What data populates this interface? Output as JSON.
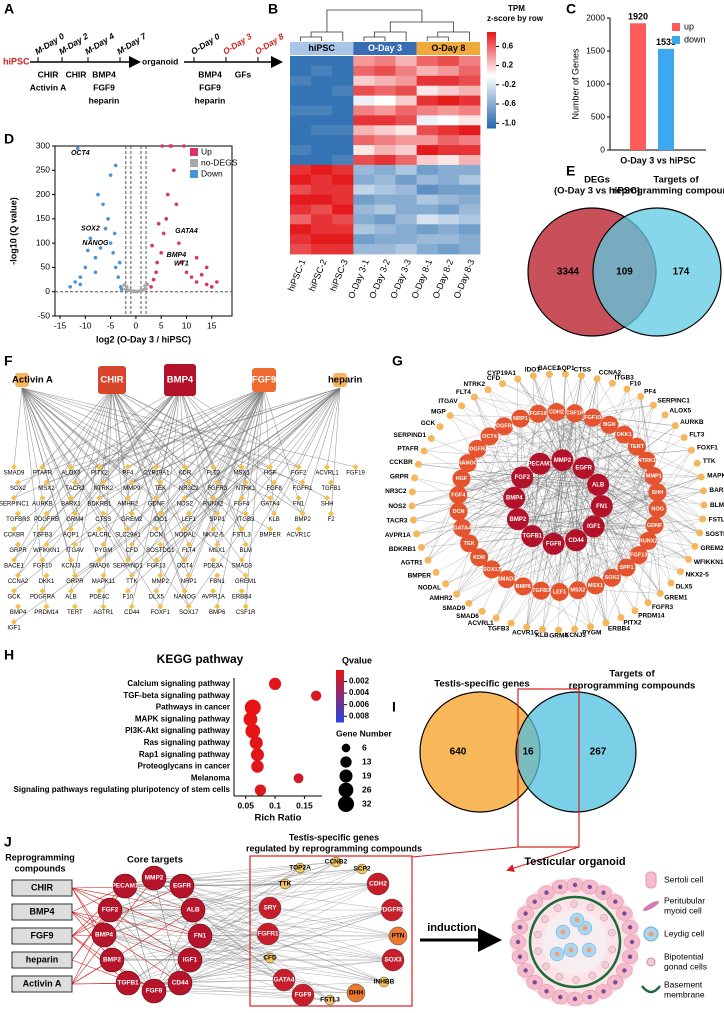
{
  "panel_labels": [
    "A",
    "B",
    "C",
    "D",
    "E",
    "F",
    "G",
    "H",
    "I",
    "J"
  ],
  "panel_a": {
    "start": "hiPSC",
    "m_days": [
      "M-Day 0",
      "M-Day 2",
      "M-Day 4",
      "M-Day 7"
    ],
    "m_factors": [
      [
        "CHIR",
        "Activin A"
      ],
      [
        "CHIR"
      ],
      [
        "BMP4",
        "FGF9",
        "heparin"
      ]
    ],
    "organoid": "organoid",
    "o_days": [
      "O-Day 0",
      "O-Day 3",
      "O-Day 8"
    ],
    "o_day_colors": [
      "#000000",
      "#d42020",
      "#d42020"
    ],
    "o_factors": [
      [
        "BMP4",
        "FGF9",
        "heparin"
      ],
      [
        "GFs"
      ]
    ]
  },
  "chart_data": [
    {
      "type": "heatmap",
      "groups": [
        {
          "name": "hiPSC",
          "color": "#a9c5e8"
        },
        {
          "name": "O-Day 3",
          "color": "#3a6cb4"
        },
        {
          "name": "O-Day 8",
          "color": "#f2a93b"
        }
      ],
      "columns": [
        "hiPSC-1",
        "hiPSC-2",
        "hiPSC-3",
        "O-Day 3-1",
        "O-Day 3-2",
        "O-Day 3-3",
        "O-Day 8-1",
        "O-Day 8-2",
        "O-Day 8-3"
      ],
      "legend_title": [
        "TPM",
        "z-score by row"
      ],
      "zlim": [
        -1.1,
        0.9
      ],
      "zticks": [
        0.6,
        0.2,
        -0.2,
        -0.6,
        {
          "value": -1,
          "label": "-1.0"
        }
      ],
      "values": [
        [
          -1.0,
          -1.0,
          -1.0,
          0.4,
          0.5,
          0.3,
          0.6,
          0.7,
          0.5
        ],
        [
          -1.0,
          -0.9,
          -1.0,
          0.6,
          0.7,
          0.5,
          0.3,
          0.4,
          0.6
        ],
        [
          -0.9,
          -1.0,
          -1.0,
          0.2,
          0.3,
          0.4,
          0.8,
          0.8,
          0.7
        ],
        [
          -1.0,
          -1.0,
          -0.9,
          0.7,
          0.6,
          0.7,
          0.1,
          0.2,
          0.3
        ],
        [
          -1.0,
          -1.0,
          -1.0,
          -0.1,
          0.0,
          0.2,
          0.8,
          0.9,
          0.8
        ],
        [
          -0.9,
          -0.9,
          -1.0,
          0.5,
          0.4,
          0.6,
          0.5,
          0.4,
          0.5
        ],
        [
          -1.0,
          -1.0,
          -1.0,
          0.8,
          0.8,
          0.7,
          -0.1,
          0.0,
          0.1
        ],
        [
          -1.0,
          -0.9,
          -0.9,
          0.3,
          0.2,
          0.1,
          0.7,
          0.8,
          0.9
        ],
        [
          -1.0,
          -1.0,
          -1.0,
          0.6,
          0.5,
          0.4,
          0.4,
          0.6,
          0.5
        ],
        [
          -0.9,
          -1.0,
          -1.0,
          0.1,
          0.3,
          0.2,
          0.9,
          0.8,
          0.8
        ],
        [
          -1.0,
          -1.0,
          -0.9,
          0.7,
          0.8,
          0.6,
          0.2,
          0.1,
          0.3
        ],
        [
          0.8,
          0.9,
          0.8,
          -0.5,
          -0.6,
          -0.4,
          -0.7,
          -0.6,
          -0.6
        ],
        [
          0.9,
          0.8,
          0.9,
          -0.6,
          -0.5,
          -0.7,
          -0.5,
          -0.6,
          -0.4
        ],
        [
          0.7,
          0.8,
          0.8,
          -0.3,
          -0.4,
          -0.5,
          -0.8,
          -0.7,
          -0.7
        ],
        [
          0.9,
          0.9,
          0.8,
          -0.7,
          -0.6,
          -0.6,
          -0.4,
          -0.5,
          -0.6
        ],
        [
          0.8,
          0.7,
          0.9,
          -0.5,
          -0.4,
          -0.6,
          -0.6,
          -0.7,
          -0.5
        ],
        [
          0.6,
          0.8,
          0.7,
          -0.6,
          -0.7,
          -0.5,
          -0.2,
          -0.3,
          -0.4
        ],
        [
          0.9,
          0.8,
          0.8,
          -0.4,
          -0.5,
          -0.6,
          -0.7,
          -0.6,
          -0.7
        ],
        [
          0.8,
          0.9,
          0.9,
          -0.7,
          -0.6,
          -0.6,
          -0.5,
          -0.5,
          -0.6
        ],
        [
          0.7,
          0.8,
          0.8,
          -0.5,
          -0.5,
          -0.4,
          -0.6,
          -0.7,
          -0.6
        ]
      ]
    },
    {
      "type": "bar",
      "categories": [
        "O-Day 3 vs hiPSC"
      ],
      "y_label": "Number of Genes",
      "series": [
        {
          "name": "up",
          "color": "#ff5b5b",
          "values": [
            1920
          ]
        },
        {
          "name": "down",
          "color": "#3da7f0",
          "values": [
            1533
          ]
        }
      ],
      "ylim": [
        0,
        2000
      ],
      "yticks": [
        0,
        500,
        1000,
        1500,
        2000
      ]
    },
    {
      "type": "scatter",
      "x_label": "log2 (O-Day 3 / hiPSC)",
      "y_label": "-log10 (Q value)",
      "xlim": [
        -16,
        19
      ],
      "ylim": [
        -50,
        300
      ],
      "xticks": [
        -15,
        -10,
        -5,
        0,
        5,
        10,
        15
      ],
      "yticks": [
        -50,
        0,
        50,
        100,
        150,
        200,
        250,
        300
      ],
      "vlines": [
        -2,
        -1,
        1,
        2
      ],
      "hline": 0,
      "series": [
        {
          "name": "Up",
          "color": "#d6336c",
          "x": [
            3,
            3.5,
            4,
            4.2,
            5,
            5.5,
            6,
            6.3,
            7,
            7.5,
            8,
            8.5,
            9,
            10,
            11,
            12,
            13,
            14,
            15,
            3.2,
            4.5,
            5.2,
            6.8,
            9.5,
            12,
            14,
            16
          ],
          "values": [
            10,
            25,
            40,
            60,
            80,
            120,
            150,
            200,
            300,
            250,
            180,
            100,
            60,
            40,
            30,
            20,
            35,
            15,
            10,
            95,
            140,
            300,
            300,
            300,
            70,
            50,
            20
          ]
        },
        {
          "name": "no-DEGS",
          "color": "#a8a8a8",
          "x": [
            -2,
            -1.5,
            -1,
            -0.5,
            0,
            0.5,
            1,
            1.5,
            2,
            -1.8,
            1.8,
            0.2,
            -0.3,
            2.3,
            -2.3
          ],
          "values": [
            5,
            3,
            2,
            1,
            0.5,
            1,
            2,
            4,
            6,
            10,
            12,
            0.3,
            0.8,
            15,
            14
          ]
        },
        {
          "name": "Down",
          "color": "#4a93d6",
          "x": [
            -3,
            -3.5,
            -4,
            -4.5,
            -5,
            -5.5,
            -6,
            -7,
            -8,
            -9,
            -10,
            -11,
            -12,
            -13,
            -3.2,
            -4.2,
            -6.5,
            -7.5,
            -9.5,
            -11,
            -5,
            -4,
            -8,
            -2.8,
            -11.5
          ],
          "values": [
            10,
            30,
            50,
            80,
            100,
            150,
            130,
            90,
            70,
            110,
            50,
            30,
            20,
            10,
            60,
            120,
            180,
            200,
            85,
            15,
            240,
            260,
            40,
            5,
            295
          ]
        }
      ],
      "annotations": [
        {
          "text": "OCT4",
          "x": -11,
          "y": 285
        },
        {
          "text": "SOX2",
          "x": -9,
          "y": 130
        },
        {
          "text": "NANOG",
          "x": -8,
          "y": 100
        },
        {
          "text": "GATA4",
          "x": 10,
          "y": 125
        },
        {
          "text": "BMP4",
          "x": 8,
          "y": 75
        },
        {
          "text": "WT1",
          "x": 9,
          "y": 58
        }
      ]
    },
    {
      "type": "dot",
      "title": "KEGG pathway",
      "x_label": "Rich Ratio",
      "categories": [
        "Calcium signaling pathway",
        "TGF-beta signaling pathway",
        "Pathways in cancer",
        "MAPK signaling pathway",
        "PI3K-Akt signaling pathway",
        "Ras signaling pathway",
        "Rap1 signaling pathway",
        "Proteoglycans in cancer",
        "Melanoma",
        "Signaling pathways regulating pluripotency of stem cells"
      ],
      "rich_ratio": [
        0.1,
        0.17,
        0.062,
        0.058,
        0.062,
        0.068,
        0.07,
        0.07,
        0.14,
        0.075
      ],
      "qvalue": [
        0.0002,
        0.0005,
        0,
        0,
        0,
        0.0001,
        0.0002,
        0.0003,
        0.001,
        0.0004
      ],
      "gene_number": [
        16,
        10,
        32,
        22,
        26,
        19,
        19,
        17,
        9,
        13
      ],
      "xlim": [
        0.03,
        0.18
      ],
      "xticks": [
        0.05,
        0.1,
        0.15
      ],
      "color_title": "Qvalue",
      "qlim": [
        0,
        0.009
      ],
      "qticks": [
        0.002,
        0.004,
        0.006,
        0.008
      ],
      "size_title": "Gene Number",
      "size_legend": [
        6,
        13,
        19,
        26,
        32
      ]
    }
  ],
  "panel_e": {
    "left_title": [
      "DEGs",
      "(O-Day 3 vs hiPSC)"
    ],
    "right_title": [
      "Targets of",
      "reprogramming compounds"
    ],
    "left_only": "3344",
    "both": "109",
    "right_only": "174",
    "left_color": "#c8505b",
    "right_color": "#5ec9e2"
  },
  "panel_f": {
    "compounds": [
      "Activin A",
      "CHIR",
      "BMP4",
      "FGF9",
      "heparin"
    ],
    "genes": [
      [
        "SMAD9",
        "PTAFR",
        "ALOX5",
        "PITX2",
        "PF4",
        "CYP19A1",
        "KDR",
        "FLT3",
        "MSX1",
        "HGF",
        "FGF2",
        "ACVRL1",
        "FGF19"
      ],
      [
        "SOX2",
        "MSX2",
        "TACR3",
        "NTRK2",
        "MMP9",
        "TEK",
        "NR3C2",
        "FGFR3",
        "NTRK1",
        "FGF8",
        "FGFR1",
        "TGFB1"
      ],
      [
        "SERPINC1",
        "AURKB",
        "BARX1",
        "BDKRB1",
        "AMHR2",
        "GDNF",
        "NOS2",
        "RUNX2",
        "FGF4",
        "GATA4",
        "FN1",
        "SHH"
      ],
      [
        "TGFBR3",
        "PDGFRB",
        "GRM4",
        "CTSS",
        "GREM2",
        "IDO1",
        "LEF1",
        "SPP1",
        "ITGB3",
        "KLB",
        "BMP2",
        "F2"
      ],
      [
        "CCKBR",
        "TGFB3",
        "AQP1",
        "CALCRL",
        "SLC29A1",
        "DCN",
        "NODAL",
        "NKX2-5",
        "FSTL3",
        "BMPER",
        "ACVR1C"
      ],
      [
        "GRPR",
        "WFIKKN1",
        "ITGAV",
        "PYGM",
        "CFD",
        "SOSTDC1",
        "FLT4",
        "MSX1",
        "BLM"
      ],
      [
        "BACE1",
        "FGF10",
        "KCNJ3",
        "SMAD6",
        "SERPIND1",
        "FGF13",
        "OCT4",
        "PDE3A",
        "SMAD3"
      ],
      [
        "CCNA2",
        "DKK1",
        "GRPR",
        "MAPK11",
        "TTK",
        "MMP2",
        "NRP1",
        "FBN1",
        "GREM1"
      ],
      [
        "GCK",
        "PDGFRA",
        "ALB",
        "PDE4C",
        "F10",
        "DLX5",
        "NANOG",
        "AVPR1A",
        "ERBB4"
      ],
      [
        "BMP4",
        "PRDM14",
        "TERT",
        "AGTR1",
        "CD44",
        "FOXF1",
        "SOX17",
        "BMP6",
        "CSF1R"
      ],
      [
        "IGF1"
      ]
    ]
  },
  "panel_g": {
    "outer": [
      "NTRK2",
      "CFD",
      "CYP19A1",
      "IDO1",
      "BACE1",
      "AQP1",
      "CTSS",
      "CCNA2",
      "ITGB3",
      "F10",
      "PF4",
      "SERPINC1",
      "ALOX5",
      "AURKB",
      "FLT3",
      "FOXF1",
      "TTK",
      "MAPK11",
      "BARX1",
      "BLM",
      "FSTL3",
      "SOSTDC1",
      "GREM2",
      "WFIKKN1",
      "NKX2-5",
      "DLX5",
      "GREM1",
      "FGFR3",
      "PRDM14",
      "PITX2",
      "ERBB4",
      "PYGM",
      "KCNJ3",
      "GRM4",
      "KLB",
      "ACVR1C",
      "TGFB3",
      "ACVRL1",
      "SMAD6",
      "SMAD9",
      "AMHR2",
      "NODAL",
      "BMPER",
      "AGTR1",
      "BDKRB1",
      "AVPR1A",
      "TACR3",
      "NOS2",
      "NR3C2",
      "GRPR",
      "CCKBR",
      "PTAFR",
      "SERPIND1",
      "GCK",
      "MGP",
      "ITGAV",
      "FLT4"
    ],
    "middle": [
      "FGF19",
      "CDH2",
      "CSF1R",
      "FGF10",
      "BGN",
      "DKK1",
      "TERT",
      "NTRK1",
      "MMP1",
      "SHH",
      "NOG",
      "GDNF",
      "RUNX2",
      "FGF13",
      "SPP1",
      "SOX2",
      "MSX1",
      "MSX2",
      "LEF1",
      "TGFB3",
      "BMP6",
      "SMAD3",
      "SOX17",
      "KDR",
      "TEK",
      "GATA4",
      "DCN",
      "FGF4",
      "HGF",
      "NANOG",
      "PDGFRA",
      "OCT4",
      "PDGFRB",
      "NRP1"
    ],
    "inner": [
      "MMP2",
      "EGFR",
      "ALB",
      "FN1",
      "IGF1",
      "CD44",
      "FGF8",
      "TGFB1",
      "BMP2",
      "BMP4",
      "FGF2",
      "PECAM1"
    ]
  },
  "panel_i": {
    "left_title": "Testis-specific genes",
    "right_title": [
      "Targets of",
      "reprogramming compounds"
    ],
    "left_only": "640",
    "both": "16",
    "right_only": "267",
    "left_color": "#f8b85a",
    "right_color": "#4fc0df"
  },
  "panel_j": {
    "compounds_title": [
      "Reprogramming",
      "compounds"
    ],
    "compounds": [
      "CHIR",
      "BMP4",
      "FGF9",
      "heparin",
      "Activin A"
    ],
    "core_title": "Core targets",
    "core": [
      "PECAM1",
      "MMP2",
      "EGFR",
      "FGF2",
      "ALB",
      "BMP4",
      "FN1",
      "BMP2",
      "IGF1",
      "TGFB1",
      "FGF8",
      "CD44"
    ],
    "testis_title": [
      "Testis-specific genes",
      "regulated by reprogramming compounds"
    ],
    "testis": [
      "TOP2A",
      "CCNB2",
      "SCP2",
      "TTK",
      "CDH2",
      "SRY",
      "PDGFRB",
      "FGFR1",
      "PTN",
      "CFD",
      "SOX3",
      "GATA4",
      "INHBB",
      "FGF9",
      "DHH",
      "FSTL3"
    ],
    "induction": "induction",
    "organoid_title": "Testicular organoid",
    "legend": [
      [
        "Sertoli cell"
      ],
      [
        "Peritubular",
        "myoid cell"
      ],
      [
        "Leydig cell"
      ],
      [
        "Bipotential",
        "gonad cells"
      ],
      [
        "Basement",
        "membrane"
      ]
    ]
  }
}
